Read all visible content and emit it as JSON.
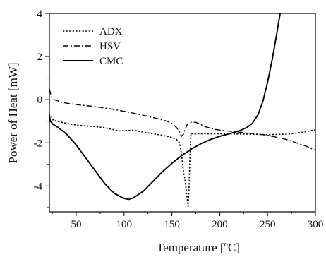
{
  "chart_data": {
    "type": "line",
    "xlabel": "Temperature [°C]",
    "xlabel_main": "Temperature [",
    "xlabel_sup": "o",
    "xlabel_unit": "C]",
    "ylabel": "Power of Heat [mW]",
    "xlim": [
      22,
      300
    ],
    "ylim": [
      -5.2,
      4
    ],
    "xticks": [
      50,
      100,
      150,
      200,
      250,
      300
    ],
    "yticks": [
      -4,
      -2,
      0,
      2,
      4
    ],
    "xtick_labels": [
      "50",
      "100",
      "150",
      "200",
      "250",
      "300"
    ],
    "ytick_labels": [
      "-4",
      "-2",
      "0",
      "2",
      "4"
    ],
    "grid": false,
    "legend_position": "top-left",
    "series": [
      {
        "name": "ADX",
        "dash": "dotted",
        "points": [
          [
            24,
            -0.75
          ],
          [
            26,
            -0.95
          ],
          [
            30,
            -1.0
          ],
          [
            40,
            -1.1
          ],
          [
            50,
            -1.18
          ],
          [
            60,
            -1.22
          ],
          [
            70,
            -1.25
          ],
          [
            80,
            -1.3
          ],
          [
            90,
            -1.4
          ],
          [
            95,
            -1.45
          ],
          [
            100,
            -1.43
          ],
          [
            110,
            -1.42
          ],
          [
            120,
            -1.5
          ],
          [
            130,
            -1.58
          ],
          [
            140,
            -1.65
          ],
          [
            150,
            -1.75
          ],
          [
            155,
            -1.85
          ],
          [
            158,
            -2.0
          ],
          [
            160,
            -2.5
          ],
          [
            162,
            -3.3
          ],
          [
            164,
            -3.8
          ],
          [
            166,
            -4.6
          ],
          [
            167,
            -4.95
          ],
          [
            168,
            -4.0
          ],
          [
            169,
            -2.5
          ],
          [
            170,
            -1.55
          ],
          [
            172,
            -1.6
          ],
          [
            180,
            -1.58
          ],
          [
            200,
            -1.58
          ],
          [
            230,
            -1.6
          ],
          [
            250,
            -1.62
          ],
          [
            270,
            -1.6
          ],
          [
            285,
            -1.52
          ],
          [
            300,
            -1.4
          ]
        ]
      },
      {
        "name": "HSV",
        "dash": "dash-dot",
        "points": [
          [
            22,
            0.5
          ],
          [
            24,
            0.15
          ],
          [
            27,
            0.0
          ],
          [
            35,
            -0.12
          ],
          [
            45,
            -0.2
          ],
          [
            55,
            -0.25
          ],
          [
            65,
            -0.3
          ],
          [
            75,
            -0.35
          ],
          [
            85,
            -0.42
          ],
          [
            95,
            -0.5
          ],
          [
            105,
            -0.58
          ],
          [
            115,
            -0.68
          ],
          [
            125,
            -0.77
          ],
          [
            135,
            -0.88
          ],
          [
            145,
            -1.0
          ],
          [
            150,
            -1.1
          ],
          [
            155,
            -1.3
          ],
          [
            158,
            -1.5
          ],
          [
            160,
            -1.7
          ],
          [
            162,
            -1.6
          ],
          [
            164,
            -1.35
          ],
          [
            166,
            -1.15
          ],
          [
            170,
            -1.05
          ],
          [
            175,
            -1.05
          ],
          [
            180,
            -1.15
          ],
          [
            185,
            -1.25
          ],
          [
            195,
            -1.38
          ],
          [
            210,
            -1.46
          ],
          [
            230,
            -1.55
          ],
          [
            250,
            -1.65
          ],
          [
            270,
            -1.85
          ],
          [
            290,
            -2.15
          ],
          [
            300,
            -2.35
          ]
        ]
      },
      {
        "name": "CMC",
        "dash": "solid",
        "points": [
          [
            22,
            -0.7
          ],
          [
            23,
            -1.0
          ],
          [
            26,
            -1.15
          ],
          [
            30,
            -1.25
          ],
          [
            40,
            -1.6
          ],
          [
            50,
            -2.1
          ],
          [
            60,
            -2.7
          ],
          [
            70,
            -3.3
          ],
          [
            80,
            -3.9
          ],
          [
            90,
            -4.35
          ],
          [
            100,
            -4.58
          ],
          [
            105,
            -4.62
          ],
          [
            110,
            -4.55
          ],
          [
            120,
            -4.25
          ],
          [
            130,
            -3.8
          ],
          [
            140,
            -3.35
          ],
          [
            150,
            -2.95
          ],
          [
            160,
            -2.6
          ],
          [
            170,
            -2.3
          ],
          [
            180,
            -2.05
          ],
          [
            190,
            -1.85
          ],
          [
            200,
            -1.7
          ],
          [
            210,
            -1.58
          ],
          [
            220,
            -1.45
          ],
          [
            228,
            -1.3
          ],
          [
            234,
            -1.1
          ],
          [
            240,
            -0.7
          ],
          [
            245,
            -0.1
          ],
          [
            250,
            0.8
          ],
          [
            255,
            1.9
          ],
          [
            259,
            2.9
          ],
          [
            262,
            3.7
          ],
          [
            264,
            4.2
          ]
        ]
      }
    ]
  }
}
